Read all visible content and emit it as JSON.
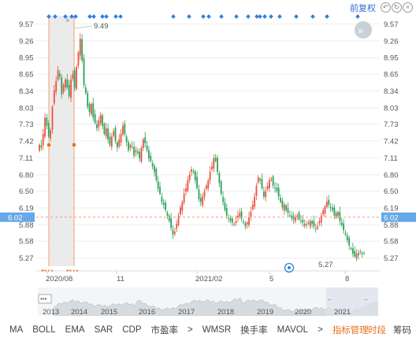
{
  "header": {
    "restore_label": "前复权",
    "icons": [
      "undo-icon",
      "refresh-icon",
      "zoom-icon",
      "close-icon"
    ]
  },
  "price_axis": {
    "left_ticks": [
      "9.57",
      "9.26",
      "8.95",
      "8.65",
      "8.34",
      "8.03",
      "7.73",
      "7.42",
      "7.11",
      "6.80",
      "6.50",
      "6.19",
      "5.88",
      "5.58",
      "5.27"
    ],
    "right_ticks": [
      "9.57",
      "9.26",
      "8.95",
      "8.65",
      "8.34",
      "8.03",
      "7.73",
      "7.42",
      "7.11",
      "6.80",
      "6.50",
      "6.19",
      "5.88",
      "5.58",
      "5.27"
    ],
    "current_price": "6.02"
  },
  "date_axis": [
    "2020/08",
    "11",
    "2021/02",
    "5",
    "8"
  ],
  "annotations": {
    "high_label": "9.49",
    "low_label": "5.27"
  },
  "navigator": {
    "years": [
      "2013",
      "2014",
      "2015",
      "2016",
      "2017",
      "2018",
      "2019",
      "2020",
      "2021"
    ],
    "menu_label": "•••"
  },
  "indicator_bar": {
    "items": [
      "MA",
      "BOLL",
      "EMA",
      "SAR",
      "CDP",
      "市盈率",
      ">",
      "WMSR",
      "换手率",
      "MAVOL",
      ">",
      "指标管理"
    ],
    "right_tabs": [
      "时段",
      "筹码"
    ]
  },
  "chart_data": {
    "type": "candlestick",
    "y_range": [
      5.12,
      9.72
    ],
    "current_price": 6.02,
    "high": 9.49,
    "low": 5.27,
    "x_labels": [
      "2020/08",
      "11",
      "2021/02",
      "5",
      "8"
    ],
    "closes": [
      7.35,
      7.3,
      7.55,
      7.85,
      7.7,
      7.5,
      7.62,
      8.05,
      8.35,
      8.52,
      8.72,
      8.6,
      8.28,
      8.45,
      8.55,
      8.4,
      8.25,
      8.55,
      8.65,
      8.4,
      8.78,
      9.05,
      9.3,
      8.9,
      8.45,
      8.3,
      8.05,
      7.95,
      8.1,
      7.85,
      7.75,
      7.65,
      7.8,
      7.9,
      7.7,
      7.55,
      7.65,
      7.45,
      7.35,
      7.5,
      7.6,
      7.42,
      7.3,
      7.45,
      7.55,
      7.7,
      7.55,
      7.4,
      7.25,
      7.35,
      7.3,
      7.15,
      7.25,
      7.2,
      7.1,
      7.3,
      7.45,
      7.38,
      7.25,
      7.1,
      7.05,
      6.95,
      6.85,
      6.7,
      6.55,
      6.45,
      6.3,
      6.25,
      6.15,
      6.05,
      5.95,
      5.82,
      5.7,
      5.75,
      5.9,
      6.05,
      6.2,
      6.3,
      6.45,
      6.55,
      6.7,
      6.8,
      6.9,
      6.85,
      6.7,
      6.55,
      6.35,
      6.3,
      6.4,
      6.5,
      6.6,
      6.7,
      6.85,
      6.95,
      7.1,
      7.05,
      6.85,
      6.65,
      6.45,
      6.3,
      6.15,
      6.05,
      6.0,
      5.95,
      5.92,
      5.9,
      5.95,
      6.05,
      6.1,
      6.0,
      5.92,
      5.85,
      5.92,
      6.02,
      6.12,
      6.25,
      6.4,
      6.6,
      6.75,
      6.7,
      6.55,
      6.4,
      6.5,
      6.6,
      6.7,
      6.72,
      6.6,
      6.55,
      6.5,
      6.4,
      6.3,
      6.2,
      6.25,
      6.15,
      6.1,
      6.05,
      6.0,
      5.98,
      6.02,
      6.05,
      5.98,
      5.95,
      5.92,
      5.9,
      5.88,
      5.9,
      5.95,
      5.9,
      5.85,
      5.8,
      5.85,
      5.95,
      6.05,
      6.15,
      6.22,
      6.3,
      6.25,
      6.2,
      6.15,
      6.05,
      6.1,
      6.05,
      5.95,
      5.88,
      5.78,
      5.7,
      5.6,
      5.5,
      5.45,
      5.35,
      5.3,
      5.35,
      5.32,
      5.38,
      5.34,
      5.36
    ]
  }
}
